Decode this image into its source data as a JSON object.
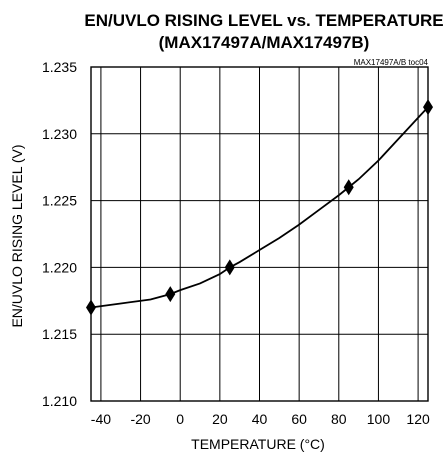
{
  "chart_data": {
    "type": "line",
    "title": "EN/UVLO RISING LEVEL vs. TEMPERATURE",
    "subtitle": "(MAX17497A/MAX17497B)",
    "figure_id": "MAX17497A/B toc04",
    "xlabel": "TEMPERATURE (°C)",
    "ylabel": "EN/UVLO RISING LEVEL (V)",
    "xlim": [
      -45,
      125
    ],
    "ylim": [
      1.21,
      1.235
    ],
    "x_ticks": [
      -40,
      -20,
      0,
      20,
      40,
      60,
      80,
      100,
      120
    ],
    "x_tick_labels": [
      "-40",
      "-20",
      "0",
      "20",
      "40",
      "60",
      "80",
      "100",
      "120"
    ],
    "y_ticks": [
      1.21,
      1.215,
      1.22,
      1.225,
      1.23,
      1.235
    ],
    "y_tick_labels": [
      "1.210",
      "1.215",
      "1.220",
      "1.225",
      "1.230",
      "1.235"
    ],
    "grid": true,
    "series": [
      {
        "curve_x": [
          -45,
          -30,
          -15,
          -5,
          0,
          10,
          20,
          25,
          30,
          40,
          50,
          60,
          70,
          80,
          85,
          90,
          100,
          110,
          120,
          125
        ],
        "curve_y": [
          1.217,
          1.2173,
          1.2176,
          1.218,
          1.2183,
          1.2188,
          1.2195,
          1.22,
          1.2204,
          1.2213,
          1.2222,
          1.2232,
          1.2243,
          1.2254,
          1.226,
          1.2266,
          1.228,
          1.2296,
          1.2312,
          1.232
        ],
        "marker_x": [
          -45,
          -5,
          25,
          85,
          125
        ],
        "marker_y": [
          1.217,
          1.218,
          1.22,
          1.226,
          1.232
        ]
      }
    ]
  }
}
